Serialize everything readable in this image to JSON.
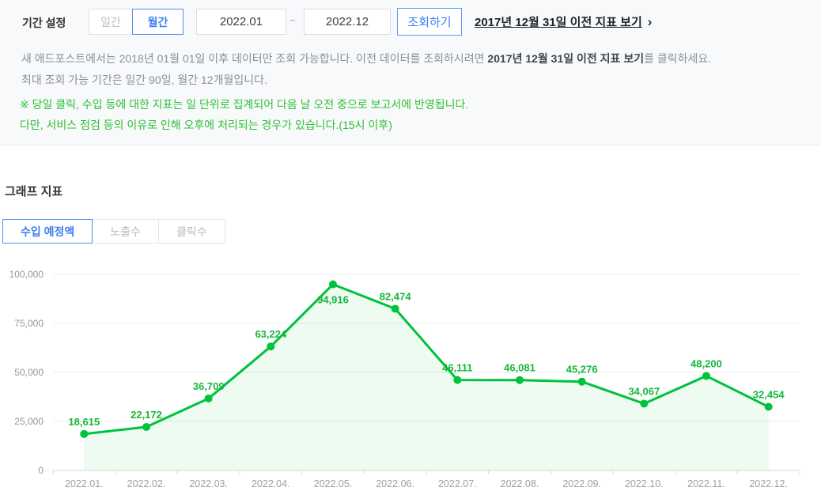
{
  "period_settings": {
    "label": "기간 설정",
    "daily_button": "일간",
    "monthly_button": "월간",
    "start_date": "2022.01",
    "tilde": "~",
    "end_date": "2022.12",
    "search_button": "조회하기",
    "legacy_link": "2017년 12월 31일 이전 지표 보기",
    "legacy_link_arrow": "›"
  },
  "notice": {
    "line1_prefix": "새 애드포스트에서는 2018년 01월 01일 이후 데이터만 조회 가능합니다. 이전 데이터를 조회하시려면 ",
    "line1_bold": "2017년 12월 31일 이전 지표 보기",
    "line1_suffix": "를 클릭하세요.",
    "line2": "최대 조회 가능 기간은 일간 90일, 월간 12개월입니다."
  },
  "warning": {
    "line1": "※ 당일 클릭, 수입 등에 대한 지표는 일 단위로 집계되어 다음 날 오전 중으로 보고서에 반영됩니다.",
    "line2": "다만, 서비스 점검 등의 이유로 인해 오후에 처리되는 경우가 있습니다.(15시 이후)"
  },
  "graph_section": {
    "title": "그래프 지표",
    "tabs": [
      {
        "label": "수입 예정액",
        "active": true
      },
      {
        "label": "노출수",
        "active": false
      },
      {
        "label": "클릭수",
        "active": false
      }
    ]
  },
  "chart_data": {
    "type": "area",
    "title": "",
    "series_name": "수입 예정액",
    "categories": [
      "2022.01.",
      "2022.02.",
      "2022.03.",
      "2022.04.",
      "2022.05.",
      "2022.06.",
      "2022.07.",
      "2022.08.",
      "2022.09.",
      "2022.10.",
      "2022.11.",
      "2022.12."
    ],
    "values": [
      18615,
      22172,
      36709,
      63224,
      94916,
      82474,
      46111,
      46081,
      45276,
      34067,
      48200,
      32454
    ],
    "value_labels": [
      "18,615",
      "22,172",
      "36,709",
      "63,224",
      "94,916",
      "82,474",
      "46,111",
      "46,081",
      "45,276",
      "34,067",
      "48,200",
      "32,454"
    ],
    "xlabel": "",
    "ylabel": "",
    "ylim": [
      0,
      100000
    ],
    "yticks": [
      0,
      25000,
      50000,
      75000,
      100000
    ],
    "ytick_labels": [
      "0",
      "25,000",
      "50,000",
      "75,000",
      "100,000"
    ],
    "grid": true,
    "legend": "none",
    "line_color": "#00c23c",
    "fill_color": "rgba(0,194,60,0.07)",
    "label_color": "#15b73a"
  },
  "colors": {
    "accent_blue": "#3e7ff2",
    "accent_blue_border": "#4a90f2",
    "warning_green": "#2dc034",
    "panel_bg": "#f8f9fb",
    "axis_text": "#8f969c",
    "grid_line": "#ececec"
  }
}
